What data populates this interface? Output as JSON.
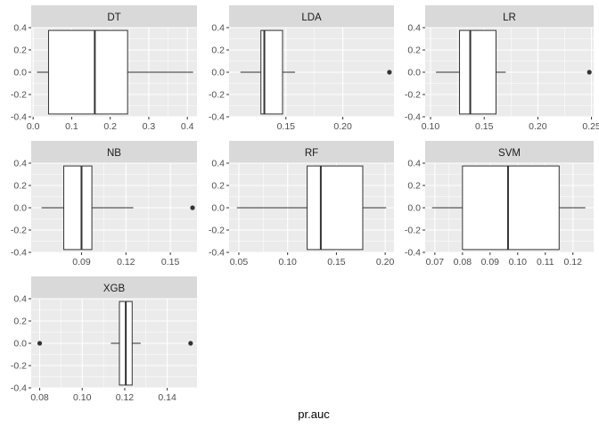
{
  "chart_data": {
    "type": "boxplot",
    "xlabel": "pr.auc",
    "ylabel": "",
    "colors": {
      "panel_bg": "#ebebeb",
      "grid_major": "#ffffff",
      "strip_bg": "#d9d9d9",
      "box_fill": "#ffffff",
      "box_stroke": "#333333",
      "tick_text": "#4d4d4d"
    },
    "y_ticks": [
      "0.4",
      "0.2",
      "0.0",
      "-0.2",
      "-0.4"
    ],
    "y_tick_values": [
      0.4,
      0.2,
      0.0,
      -0.2,
      -0.4
    ],
    "ylim": [
      -0.4,
      0.4
    ],
    "facets": [
      {
        "name": "DT",
        "xlim": [
          -0.005,
          0.425
        ],
        "x_ticks": [
          0.0,
          0.1,
          0.2,
          0.3,
          0.4
        ],
        "x_tick_labels": [
          "0.0",
          "0.1",
          "0.2",
          "0.3",
          "0.4"
        ],
        "whisker_low": 0.01,
        "q1": 0.04,
        "median": 0.16,
        "q3": 0.245,
        "whisker_high": 0.415,
        "outliers": []
      },
      {
        "name": "LDA",
        "xlim": [
          0.1,
          0.245
        ],
        "x_ticks": [
          0.15,
          0.2
        ],
        "x_tick_labels": [
          "0.15",
          "0.20"
        ],
        "whisker_low": 0.11,
        "q1": 0.128,
        "median": 0.131,
        "q3": 0.147,
        "whisker_high": 0.158,
        "outliers": [
          0.241
        ]
      },
      {
        "name": "LR",
        "xlim": [
          0.095,
          0.252
        ],
        "x_ticks": [
          0.1,
          0.15,
          0.2,
          0.25
        ],
        "x_tick_labels": [
          "0.10",
          "0.15",
          "0.20",
          "0.25"
        ],
        "whisker_low": 0.105,
        "q1": 0.127,
        "median": 0.137,
        "q3": 0.161,
        "whisker_high": 0.17,
        "outliers": [
          0.248
        ]
      },
      {
        "name": "NB",
        "xlim": [
          0.056,
          0.168
        ],
        "x_ticks": [
          0.09,
          0.12,
          0.15
        ],
        "x_tick_labels": [
          "0.09",
          "0.12",
          "0.15"
        ],
        "whisker_low": 0.063,
        "q1": 0.078,
        "median": 0.09,
        "q3": 0.097,
        "whisker_high": 0.125,
        "outliers": [
          0.165
        ]
      },
      {
        "name": "RF",
        "xlim": [
          0.04,
          0.209
        ],
        "x_ticks": [
          0.05,
          0.1,
          0.15,
          0.2
        ],
        "x_tick_labels": [
          "0.05",
          "0.10",
          "0.15",
          "0.20"
        ],
        "whisker_low": 0.048,
        "q1": 0.12,
        "median": 0.134,
        "q3": 0.177,
        "whisker_high": 0.201,
        "outliers": []
      },
      {
        "name": "SVM",
        "xlim": [
          0.0665,
          0.1275
        ],
        "x_ticks": [
          0.07,
          0.08,
          0.09,
          0.1,
          0.11,
          0.12
        ],
        "x_tick_labels": [
          "0.07",
          "0.08",
          "0.09",
          "0.10",
          "0.11",
          "0.12"
        ],
        "whisker_low": 0.069,
        "q1": 0.08,
        "median": 0.0965,
        "q3": 0.115,
        "whisker_high": 0.1245,
        "outliers": []
      },
      {
        "name": "XGB",
        "xlim": [
          0.076,
          0.154
        ],
        "x_ticks": [
          0.08,
          0.1,
          0.12,
          0.14
        ],
        "x_tick_labels": [
          "0.08",
          "0.10",
          "0.12",
          "0.14"
        ],
        "whisker_low": 0.1135,
        "q1": 0.1175,
        "median": 0.1205,
        "q3": 0.1235,
        "whisker_high": 0.1275,
        "outliers": [
          0.08,
          0.151
        ]
      }
    ]
  }
}
